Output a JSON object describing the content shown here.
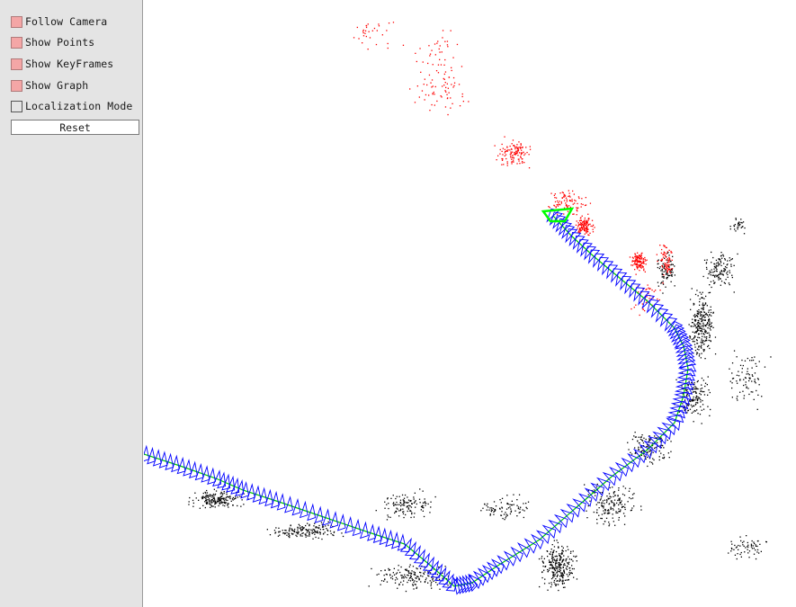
{
  "panel": {
    "options": [
      {
        "label": "Follow Camera",
        "checked": true
      },
      {
        "label": "Show Points",
        "checked": true
      },
      {
        "label": "Show KeyFrames",
        "checked": true
      },
      {
        "label": "Show Graph",
        "checked": true
      },
      {
        "label": "Localization Mode",
        "checked": false
      }
    ],
    "reset_label": "Reset"
  },
  "viewer": {
    "colors": {
      "map_points": "#000000",
      "local_map_points": "#ff0000",
      "keyframes": "#0000ff",
      "graph": "#00cc00",
      "current_camera": "#00ff00"
    }
  }
}
